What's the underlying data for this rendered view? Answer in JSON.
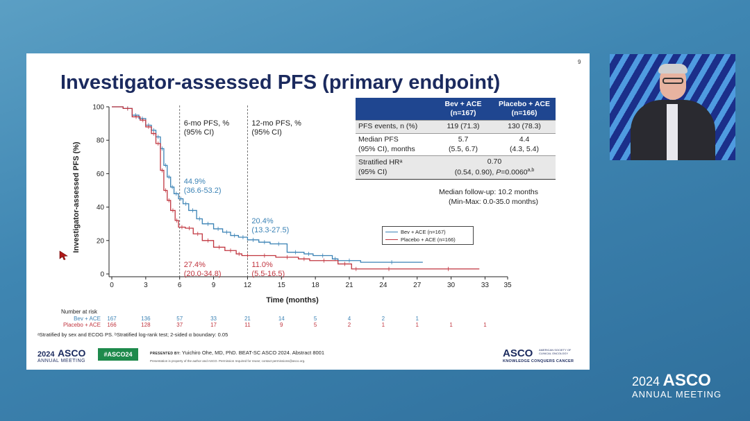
{
  "slide": {
    "number": "9",
    "title": "Investigator-assessed PFS (primary endpoint)"
  },
  "table": {
    "headers": [
      "",
      "Bev + ACE\n(n=167)",
      "Placebo + ACE\n(n=166)"
    ],
    "rows": [
      {
        "label": "PFS events, n (%)",
        "bev": "119 (71.3)",
        "placebo": "130 (78.3)"
      },
      {
        "label": "Median PFS\n(95% CI), months",
        "bev": "5.7\n(5.5, 6.7)",
        "placebo": "4.4\n(4.3, 5.4)"
      },
      {
        "label": "Stratified HRᵃ\n(95% CI)",
        "hr": "0.70",
        "ci_text": "(0.54, 0.90), ",
        "p_label": "P",
        "p_value": "=0.0060",
        "p_sup": "a,b"
      }
    ]
  },
  "followup": {
    "line1": "Median follow-up: 10.2 months",
    "line2": "(Min-Max: 0.0-35.0 months)"
  },
  "annotations": {
    "six_mo_header": [
      "6-mo PFS, %",
      "(95% CI)"
    ],
    "twelve_mo_header": [
      "12-mo PFS, %",
      "(95% CI)"
    ],
    "bev_6mo": [
      "44.9%",
      "(36.6-53.2)"
    ],
    "bev_12mo": [
      "20.4%",
      "(13.3-27.5)"
    ],
    "placebo_6mo": [
      "27.4%",
      "(20.0-34.8)"
    ],
    "placebo_12mo": [
      "11.0%",
      "(5.5-16.5)"
    ]
  },
  "risk_table": {
    "title": "Number at risk",
    "times": [
      0,
      3,
      6,
      9,
      12,
      15,
      18,
      21,
      24,
      27,
      30,
      33
    ],
    "bev": {
      "label": "Bev + ACE",
      "counts": [
        167,
        136,
        57,
        33,
        21,
        14,
        5,
        4,
        2,
        1
      ]
    },
    "placebo": {
      "label": "Placebo + ACE",
      "counts": [
        166,
        128,
        37,
        17,
        11,
        9,
        5,
        2,
        1,
        1,
        1,
        1
      ]
    }
  },
  "footnote": "ᵃStratified by sex and ECOG PS. ᵇStratified log-rank test; 2-sided α boundary: 0.05",
  "footer": {
    "logo_year": "2024",
    "logo_asco": "ASCO",
    "logo_sub": "ANNUAL MEETING",
    "hashtag": "#ASCO24",
    "presented_by_label": "PRESENTED BY:",
    "presenter": "Yuichiro Ohe, MD, PhD. BEAT-SC ASCO 2024. Abstract 8001",
    "disclaimer": "Presentation is property of the author and ASCO. Permission required for reuse; contact permissions@asco.org.",
    "org_asco": "ASCO",
    "org_society": "AMERICAN SOCIETY OF CLINICAL ONCOLOGY",
    "org_tagline": "KNOWLEDGE CONQUERS CANCER"
  },
  "event_logo": {
    "year": "2024",
    "asco": "ASCO",
    "sub": "ANNUAL MEETING"
  },
  "colors": {
    "bev": "#3a82b5",
    "placebo": "#c0343e",
    "title": "#1b2a5e",
    "table_header": "#1f4690"
  },
  "chart_data": {
    "type": "line",
    "title": "Investigator-assessed PFS (primary endpoint)",
    "xlabel": "Time (months)",
    "ylabel": "Investigator-assessed PFS (%)",
    "xlim": [
      0,
      35
    ],
    "ylim": [
      0,
      100
    ],
    "xticks": [
      0,
      3,
      6,
      9,
      12,
      15,
      18,
      21,
      24,
      27,
      30,
      33,
      35
    ],
    "yticks": [
      0,
      20,
      40,
      60,
      80,
      100
    ],
    "grid": false,
    "legend": "right",
    "reference_lines_x": [
      6,
      12
    ],
    "series": [
      {
        "name": "Bev + ACE (n=167)",
        "step": true,
        "x": [
          0,
          1,
          1.8,
          2.4,
          3.0,
          3.5,
          3.9,
          4.3,
          4.6,
          4.9,
          5.2,
          5.5,
          5.9,
          6.3,
          6.8,
          7.5,
          8.0,
          9.0,
          9.8,
          10.5,
          11.2,
          12.0,
          13.0,
          14.0,
          15.5,
          17.0,
          17.8,
          19.5,
          20.0,
          22.0,
          27.5
        ],
        "y": [
          100,
          99,
          95,
          93,
          89,
          86,
          82,
          75,
          65,
          58,
          52,
          48,
          45,
          42,
          38,
          33,
          30,
          27,
          25,
          23,
          22,
          20.4,
          19,
          18,
          13,
          12,
          11,
          9,
          8,
          7,
          7
        ]
      },
      {
        "name": "Placebo + ACE (n=166)",
        "step": true,
        "x": [
          0,
          1,
          1.8,
          2.5,
          3.0,
          3.5,
          3.9,
          4.3,
          4.6,
          4.9,
          5.2,
          5.6,
          5.9,
          6.5,
          7.2,
          8.0,
          9.0,
          10.0,
          11.0,
          11.5,
          12.5,
          14.5,
          16.5,
          17.5,
          20.0,
          21.2,
          22.0,
          27.0,
          32.5
        ],
        "y": [
          100,
          99,
          94,
          92,
          88,
          84,
          78,
          62,
          50,
          44,
          38,
          32,
          28,
          27.4,
          24,
          20,
          16,
          14,
          12,
          11,
          11,
          10,
          9,
          8,
          6,
          3,
          3,
          3,
          3
        ]
      }
    ]
  }
}
